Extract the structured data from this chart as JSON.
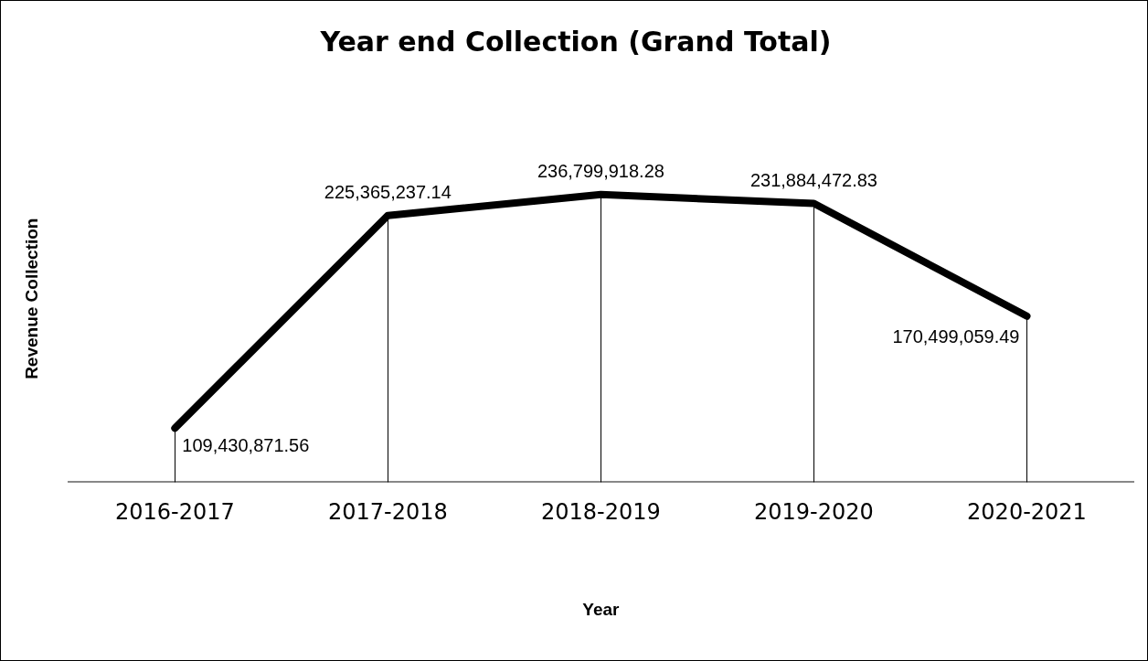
{
  "chart_data": {
    "type": "line",
    "title": "Year end Collection (Grand Total)",
    "xlabel": "Year",
    "ylabel": "Revenue Collection",
    "categories": [
      "2016-2017",
      "2017-2018",
      "2018-2019",
      "2019-2020",
      "2020-2021"
    ],
    "series": [
      {
        "color": "#000000",
        "values": [
          109430871.56,
          225365237.14,
          236799918.28,
          231884472.83,
          170499059.49
        ],
        "value_labels": [
          "109,430,871.56",
          "225,365,237.14",
          "236,799,918.28",
          "231,884,472.83",
          "170,499,059.49"
        ]
      }
    ],
    "grid": "x",
    "legend": false,
    "marker": "none",
    "line_style": "solid"
  }
}
